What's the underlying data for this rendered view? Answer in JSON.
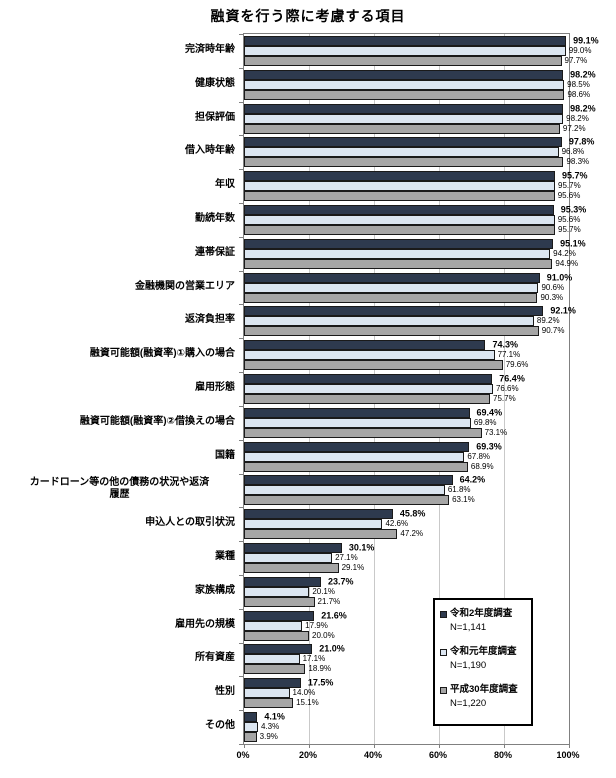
{
  "title": "融資を行う際に考慮する項目",
  "chart_data": {
    "type": "bar",
    "orientation": "horizontal",
    "title": "融資を行う際に考慮する項目",
    "xlabel": "",
    "ylabel": "",
    "xlim": [
      0,
      100
    ],
    "x_ticks": [
      "0%",
      "20%",
      "40%",
      "60%",
      "80%",
      "100%"
    ],
    "x_tick_values": [
      0,
      20,
      40,
      60,
      80,
      100
    ],
    "grid": "vertical",
    "legend_position": "inside-lower-right",
    "value_label_format": "one-decimal-percent",
    "categories": [
      "完済時年齢",
      "健康状態",
      "担保評価",
      "借入時年齢",
      "年収",
      "勤続年数",
      "連帯保証",
      "金融機関の営業エリア",
      "返済負担率",
      "融資可能額(融資率)①購入の場合",
      "雇用形態",
      "融資可能額(融資率)②借換えの場合",
      "国籍",
      "カードローン等の他の債務の状況や返済\n履歴",
      "申込人との取引状況",
      "業種",
      "家族構成",
      "雇用先の規模",
      "所有資産",
      "性別",
      "その他"
    ],
    "series": [
      {
        "name": "令和2年度調査",
        "n_label": "N=1,141",
        "color": "#2E3A4E",
        "values": [
          99.1,
          98.2,
          98.2,
          97.8,
          95.7,
          95.3,
          95.1,
          91.0,
          92.1,
          74.3,
          76.4,
          69.4,
          69.3,
          64.2,
          45.8,
          30.1,
          23.7,
          21.6,
          21.0,
          17.5,
          4.1
        ]
      },
      {
        "name": "令和元年度調査",
        "n_label": "N=1,190",
        "color": "#DCE6F1",
        "values": [
          99.0,
          98.5,
          98.2,
          96.8,
          95.7,
          95.6,
          94.2,
          90.6,
          89.2,
          77.1,
          76.6,
          69.8,
          67.8,
          61.8,
          42.6,
          27.1,
          20.1,
          17.9,
          17.1,
          14.0,
          4.3
        ]
      },
      {
        "name": "平成30年度調査",
        "n_label": "N=1,220",
        "color": "#A6A6A6",
        "values": [
          97.7,
          98.6,
          97.2,
          98.3,
          95.6,
          95.7,
          94.9,
          90.3,
          90.7,
          79.6,
          75.7,
          73.1,
          68.9,
          63.1,
          47.2,
          29.1,
          21.7,
          20.0,
          18.9,
          15.1,
          3.9
        ]
      }
    ]
  },
  "colors": {
    "plot_border": "#808080",
    "gridline": "#C9C9C9",
    "bar_border": "#1A1A1A",
    "series_dark": "#2E3A4E",
    "series_light": "#DCE6F1",
    "series_gray": "#A6A6A6"
  }
}
